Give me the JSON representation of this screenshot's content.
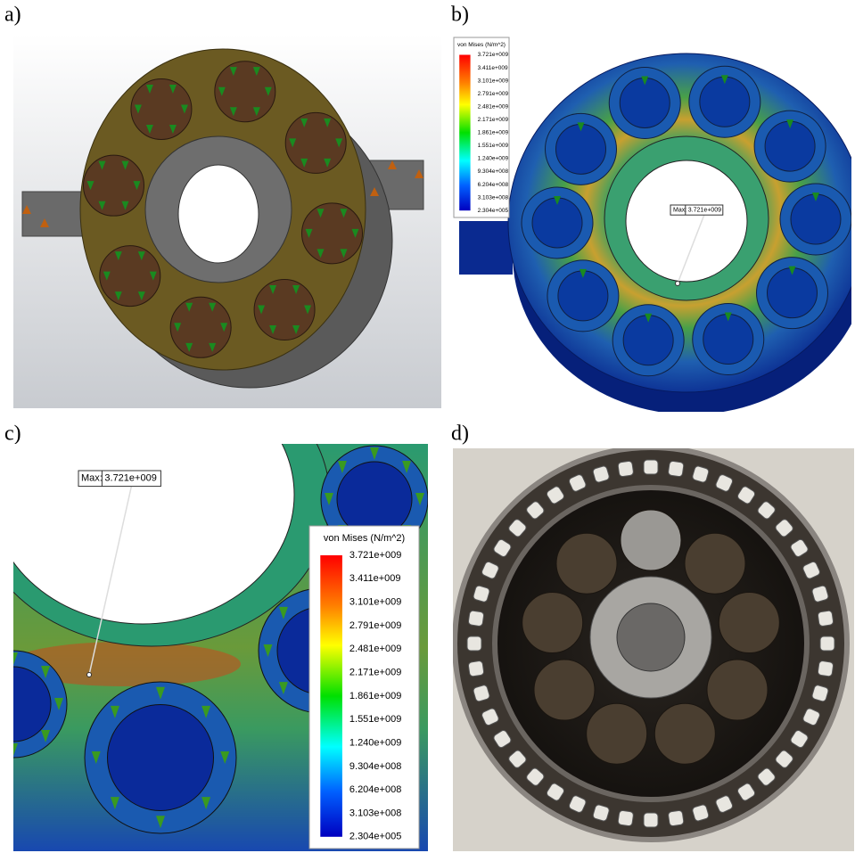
{
  "panels": [
    {
      "label": "a)"
    },
    {
      "label": "b)",
      "legend": {
        "title": "von Mises (N/m^2)",
        "ticks": [
          "3.721e+009",
          "3.411e+009",
          "3.101e+009",
          "2.791e+009",
          "2.481e+009",
          "2.171e+009",
          "1.861e+009",
          "1.551e+009",
          "1.240e+009",
          "9.304e+008",
          "6.204e+008",
          "3.103e+008",
          "2.304e+005"
        ]
      },
      "max_label": {
        "key": "Max:",
        "value": "3.721e+009"
      }
    },
    {
      "label": "c)",
      "legend": {
        "title": "von Mises (N/m^2)",
        "ticks": [
          "3.721e+009",
          "3.411e+009",
          "3.101e+009",
          "2.791e+009",
          "2.481e+009",
          "2.171e+009",
          "1.861e+009",
          "1.551e+009",
          "1.240e+009",
          "9.304e+008",
          "6.204e+008",
          "3.103e+008",
          "2.304e+005"
        ]
      },
      "max_label": {
        "key": "Max:",
        "value": "3.721e+009"
      }
    },
    {
      "label": "d)"
    }
  ]
}
